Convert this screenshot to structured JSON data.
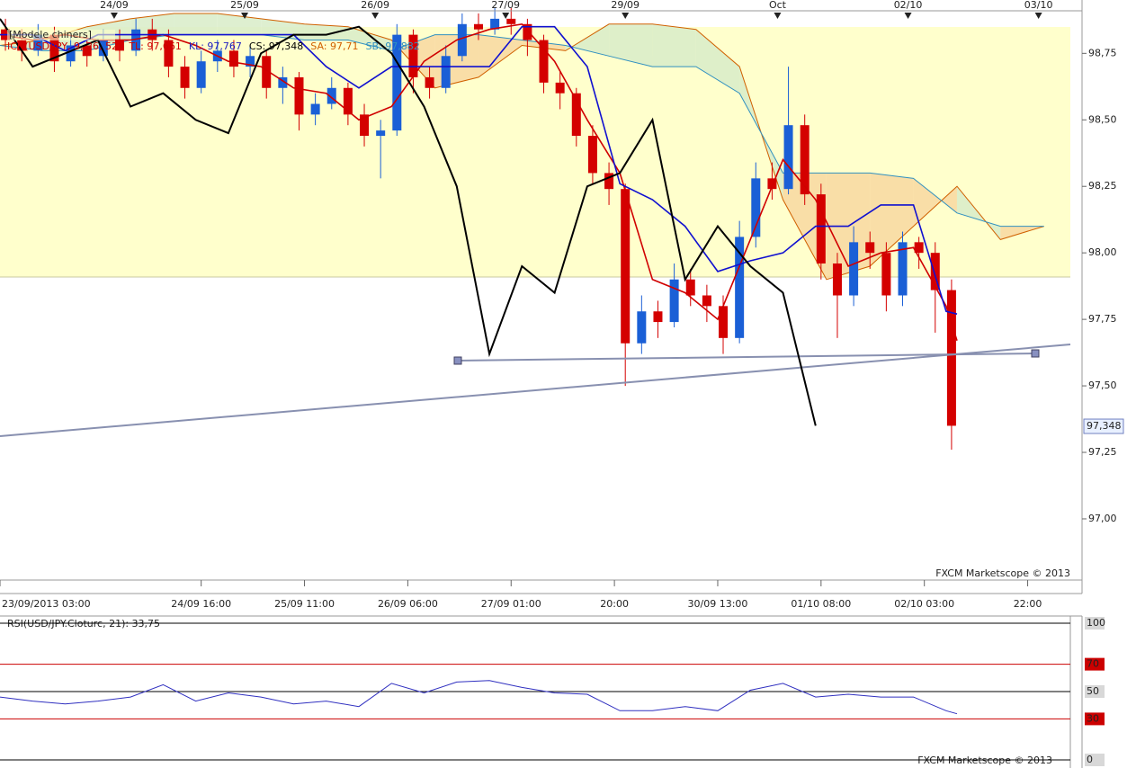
{
  "chart_data": {
    "type": "candlestick",
    "indicator_label": "[Modele chiners]",
    "legend": [
      {
        "text": "ICH(USD/JPY, 9, 26, 52)",
        "color": "#cc0000"
      },
      {
        "text": "TL: 97,661",
        "color": "#cc0000"
      },
      {
        "text": "KL: 97,767",
        "color": "#2020c0"
      },
      {
        "text": "CS: 97,348",
        "color": "#000000"
      },
      {
        "text": "SA: 97,71",
        "color": "#d06000"
      },
      {
        "text": "SB: 97,882",
        "color": "#3090c0"
      }
    ],
    "watermark": "FXCM Marketscope © 2013",
    "xlim": [
      0,
      199
    ],
    "xticks": [
      {
        "value": 0,
        "label": "23/09/2013 03:00"
      },
      {
        "value": 37,
        "label": "24/09 16:00"
      },
      {
        "value": 56,
        "label": "25/09 11:00"
      },
      {
        "value": 75,
        "label": "26/09 06:00"
      },
      {
        "value": 94,
        "label": "27/09 01:00"
      },
      {
        "value": 113,
        "label": "20:00"
      },
      {
        "value": 132,
        "label": "30/09 13:00"
      },
      {
        "value": 151,
        "label": "01/10 08:00"
      },
      {
        "value": 170,
        "label": "02/10 03:00"
      },
      {
        "value": 189,
        "label": "22:00"
      }
    ],
    "top_xticks": [
      {
        "value": 21,
        "label": "24/09"
      },
      {
        "value": 45,
        "label": "25/09"
      },
      {
        "value": 69,
        "label": "26/09"
      },
      {
        "value": 93,
        "label": "27/09"
      },
      {
        "value": 115,
        "label": "29/09"
      },
      {
        "value": 143,
        "label": "Oct"
      },
      {
        "value": 167,
        "label": "02/10"
      },
      {
        "value": 191,
        "label": "03/10"
      }
    ],
    "ylim": [
      96.77,
      98.91
    ],
    "yticks": [
      {
        "value": 97.0,
        "label": "97,00"
      },
      {
        "value": 97.25,
        "label": "97,25"
      },
      {
        "value": 97.5,
        "label": "97,50"
      },
      {
        "value": 97.75,
        "label": "97,75"
      },
      {
        "value": 98.0,
        "label": "98,00"
      },
      {
        "value": 98.25,
        "label": "98,25"
      },
      {
        "value": 98.5,
        "label": "98,50"
      },
      {
        "value": 98.75,
        "label": "98,75"
      }
    ],
    "last_price": {
      "value": 97.348,
      "label": "97,348"
    },
    "up_color": "#1a5fd6",
    "down_color": "#d40000",
    "candle_x": [
      1,
      4,
      7,
      10,
      13,
      16,
      19,
      22,
      25,
      28,
      31,
      34,
      37,
      40,
      43,
      46,
      49,
      52,
      55,
      58,
      61,
      64,
      67,
      70,
      73,
      76,
      79,
      82,
      85,
      88,
      91,
      94,
      97,
      100,
      103,
      106,
      109,
      112,
      115,
      118,
      121,
      124,
      127,
      130,
      133,
      136,
      139,
      142,
      145,
      148,
      151,
      154,
      157,
      160,
      163,
      166,
      169,
      172,
      175
    ],
    "ohlc": [
      [
        98.84,
        98.88,
        98.76,
        98.8
      ],
      [
        98.8,
        98.84,
        98.72,
        98.76
      ],
      [
        98.76,
        98.86,
        98.74,
        98.82
      ],
      [
        98.82,
        98.85,
        98.68,
        98.72
      ],
      [
        98.72,
        98.82,
        98.7,
        98.78
      ],
      [
        98.78,
        98.82,
        98.7,
        98.74
      ],
      [
        98.74,
        98.84,
        98.72,
        98.8
      ],
      [
        98.8,
        98.84,
        98.72,
        98.76
      ],
      [
        98.76,
        98.88,
        98.74,
        98.84
      ],
      [
        98.84,
        98.88,
        98.76,
        98.8
      ],
      [
        98.8,
        98.84,
        98.66,
        98.7
      ],
      [
        98.7,
        98.74,
        98.58,
        98.62
      ],
      [
        98.62,
        98.76,
        98.6,
        98.72
      ],
      [
        98.72,
        98.8,
        98.68,
        98.76
      ],
      [
        98.76,
        98.8,
        98.66,
        98.7
      ],
      [
        98.7,
        98.78,
        98.66,
        98.74
      ],
      [
        98.74,
        98.76,
        98.58,
        98.62
      ],
      [
        98.62,
        98.7,
        98.56,
        98.66
      ],
      [
        98.66,
        98.68,
        98.46,
        98.52
      ],
      [
        98.52,
        98.6,
        98.48,
        98.56
      ],
      [
        98.56,
        98.66,
        98.54,
        98.62
      ],
      [
        98.62,
        98.64,
        98.48,
        98.52
      ],
      [
        98.52,
        98.56,
        98.4,
        98.44
      ],
      [
        98.44,
        98.5,
        98.28,
        98.46
      ],
      [
        98.46,
        98.86,
        98.44,
        98.82
      ],
      [
        98.82,
        98.84,
        98.6,
        98.66
      ],
      [
        98.66,
        98.7,
        98.58,
        98.62
      ],
      [
        98.62,
        98.78,
        98.6,
        98.74
      ],
      [
        98.74,
        98.9,
        98.72,
        98.86
      ],
      [
        98.86,
        98.9,
        98.8,
        98.84
      ],
      [
        98.84,
        98.92,
        98.82,
        98.88
      ],
      [
        98.88,
        98.92,
        98.82,
        98.86
      ],
      [
        98.86,
        98.88,
        98.74,
        98.8
      ],
      [
        98.8,
        98.82,
        98.6,
        98.64
      ],
      [
        98.64,
        98.68,
        98.54,
        98.6
      ],
      [
        98.6,
        98.62,
        98.4,
        98.44
      ],
      [
        98.44,
        98.48,
        98.26,
        98.3
      ],
      [
        98.3,
        98.34,
        98.18,
        98.24
      ],
      [
        98.24,
        98.26,
        97.5,
        97.66
      ],
      [
        97.66,
        97.84,
        97.62,
        97.78
      ],
      [
        97.78,
        97.82,
        97.68,
        97.74
      ],
      [
        97.74,
        97.96,
        97.72,
        97.9
      ],
      [
        97.9,
        97.94,
        97.8,
        97.84
      ],
      [
        97.84,
        97.88,
        97.74,
        97.8
      ],
      [
        97.8,
        97.84,
        97.62,
        97.68
      ],
      [
        97.68,
        98.12,
        97.66,
        98.06
      ],
      [
        98.06,
        98.34,
        98.02,
        98.28
      ],
      [
        98.28,
        98.34,
        98.2,
        98.24
      ],
      [
        98.24,
        98.7,
        98.22,
        98.48
      ],
      [
        98.48,
        98.52,
        98.18,
        98.22
      ],
      [
        98.22,
        98.26,
        97.9,
        97.96
      ],
      [
        97.96,
        98.0,
        97.68,
        97.84
      ],
      [
        97.84,
        98.1,
        97.8,
        98.04
      ],
      [
        98.04,
        98.08,
        97.94,
        98.0
      ],
      [
        98.0,
        98.04,
        97.78,
        97.84
      ],
      [
        97.84,
        98.08,
        97.8,
        98.04
      ],
      [
        98.04,
        98.06,
        97.94,
        98.0
      ],
      [
        98.0,
        98.04,
        97.7,
        97.86
      ],
      [
        97.86,
        97.9,
        97.26,
        97.35
      ]
    ],
    "line_x": [
      0,
      6,
      12,
      18,
      24,
      30,
      36,
      42,
      48,
      54,
      60,
      66,
      72,
      78,
      84,
      90,
      96,
      102,
      108,
      114,
      120,
      126,
      132,
      138,
      144,
      150,
      156,
      162,
      168,
      174,
      176
    ],
    "lines": [
      {
        "color": "#d00000",
        "values": [
          98.82,
          98.8,
          98.82,
          98.8,
          98.8,
          98.82,
          98.78,
          98.72,
          98.7,
          98.62,
          98.6,
          98.5,
          98.55,
          98.72,
          98.8,
          98.84,
          98.86,
          98.72,
          98.5,
          98.3,
          97.9,
          97.85,
          97.75,
          98.05,
          98.35,
          98.2,
          97.95,
          98.0,
          98.02,
          97.8,
          97.67
        ]
      },
      {
        "color": "#1010d0",
        "values": [
          98.82,
          98.82,
          98.76,
          98.82,
          98.82,
          98.82,
          98.82,
          98.82,
          98.82,
          98.82,
          98.7,
          98.62,
          98.7,
          98.7,
          98.7,
          98.7,
          98.85,
          98.85,
          98.7,
          98.26,
          98.2,
          98.1,
          97.93,
          97.97,
          98.0,
          98.1,
          98.1,
          98.18,
          98.18,
          97.78,
          97.77
        ]
      },
      {
        "color": "#000000",
        "values": [
          98.88,
          98.7,
          98.75,
          98.8,
          98.55,
          98.6,
          98.5,
          98.45,
          98.75,
          98.82,
          98.82,
          98.85,
          98.75,
          98.55,
          98.25,
          97.62,
          97.95,
          97.85,
          98.25,
          98.3,
          98.5,
          97.9,
          98.1,
          97.95,
          97.85,
          97.35,
          null,
          null,
          null,
          null,
          null
        ]
      }
    ],
    "cloud_x": [
      0,
      8,
      16,
      24,
      32,
      40,
      48,
      56,
      64,
      72,
      80,
      88,
      96,
      104,
      112,
      120,
      128,
      136,
      144,
      152,
      160,
      168,
      176,
      184,
      192
    ],
    "span_a": {
      "color": "#d06000",
      "values": [
        98.78,
        98.8,
        98.85,
        98.88,
        98.9,
        98.9,
        98.88,
        98.86,
        98.85,
        98.8,
        98.62,
        98.66,
        98.78,
        98.76,
        98.86,
        98.86,
        98.84,
        98.7,
        98.2,
        97.9,
        97.95,
        98.1,
        98.25,
        98.05,
        98.1
      ]
    },
    "span_b": {
      "color": "#3090c0",
      "values": [
        98.78,
        98.76,
        98.76,
        98.8,
        98.82,
        98.82,
        98.82,
        98.8,
        98.8,
        98.76,
        98.82,
        98.82,
        98.8,
        98.78,
        98.74,
        98.7,
        98.7,
        98.6,
        98.3,
        98.3,
        98.3,
        98.28,
        98.15,
        98.1,
        98.1
      ]
    },
    "cloud_up_color": "#d8ecc8",
    "cloud_down_color": "#f8d8a0",
    "rsi": {
      "title": "RSI(USD/JPY.Cloturc, 21): 33,75",
      "color": "#3030c0",
      "ylim": [
        0,
        100
      ],
      "yticks": [
        0,
        30,
        50,
        70,
        100
      ],
      "ytick_colors": [
        "#000000",
        "#cc0000",
        "#000000",
        "#cc0000",
        "#000000"
      ],
      "values": [
        46,
        43,
        41,
        43,
        46,
        55,
        43,
        49,
        46,
        41,
        43,
        39,
        56,
        49,
        57,
        58,
        53,
        49,
        48,
        36,
        36,
        39,
        36,
        51,
        56,
        46,
        48,
        46,
        46,
        36,
        33.75
      ]
    }
  }
}
